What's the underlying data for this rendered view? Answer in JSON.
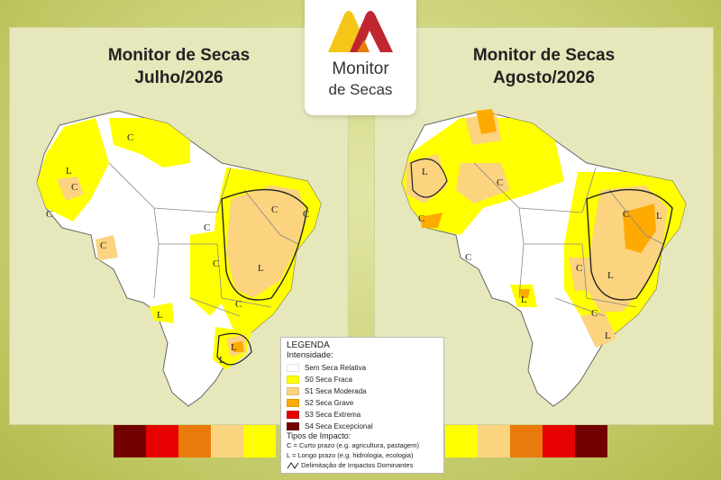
{
  "maps": [
    {
      "title_line1": "Monitor de Secas",
      "title_line2": "Julho/2026",
      "impact_marks": [
        "C",
        "C",
        "L",
        "C",
        "C",
        "C",
        "C",
        "C",
        "C",
        "L",
        "C",
        "L",
        "L",
        "L"
      ]
    },
    {
      "title_line1": "Monitor de Secas",
      "title_line2": "Agosto/2026",
      "impact_marks": [
        "L",
        "C",
        "C",
        "C",
        "C",
        "L",
        "C",
        "L",
        "C",
        "L",
        "L"
      ]
    }
  ],
  "logo": {
    "line1": "Monitor",
    "line2": "de Secas"
  },
  "legend": {
    "title": "LEGENDA",
    "intensity_title": "Intensidade:",
    "items": [
      {
        "label": "Sem Seca Relativa",
        "color": "#ffffff"
      },
      {
        "label": "S0 Seca Fraca",
        "color": "#ffff00"
      },
      {
        "label": "S1 Seca Moderada",
        "color": "#fcd37f"
      },
      {
        "label": "S2 Seca Grave",
        "color": "#ffaa00"
      },
      {
        "label": "S3 Seca Extrema",
        "color": "#e60000"
      },
      {
        "label": "S4 Seca Excepcional",
        "color": "#730000"
      }
    ],
    "impact_title": "Tipos de Impacto:",
    "impact_short": "C = Curto prazo (e.g. agricultura, pastagem)",
    "impact_long": "L = Longo prazo (e.g. hidrologia, ecologia)",
    "impact_line": "Delimitação de Impactos Dominantes"
  },
  "stripe_left": [
    "#730000",
    "#e60000",
    "#e87b0c",
    "#fcd37f",
    "#ffff00"
  ],
  "stripe_right": [
    "#ffff00",
    "#fcd37f",
    "#e87b0c",
    "#e60000",
    "#730000"
  ]
}
